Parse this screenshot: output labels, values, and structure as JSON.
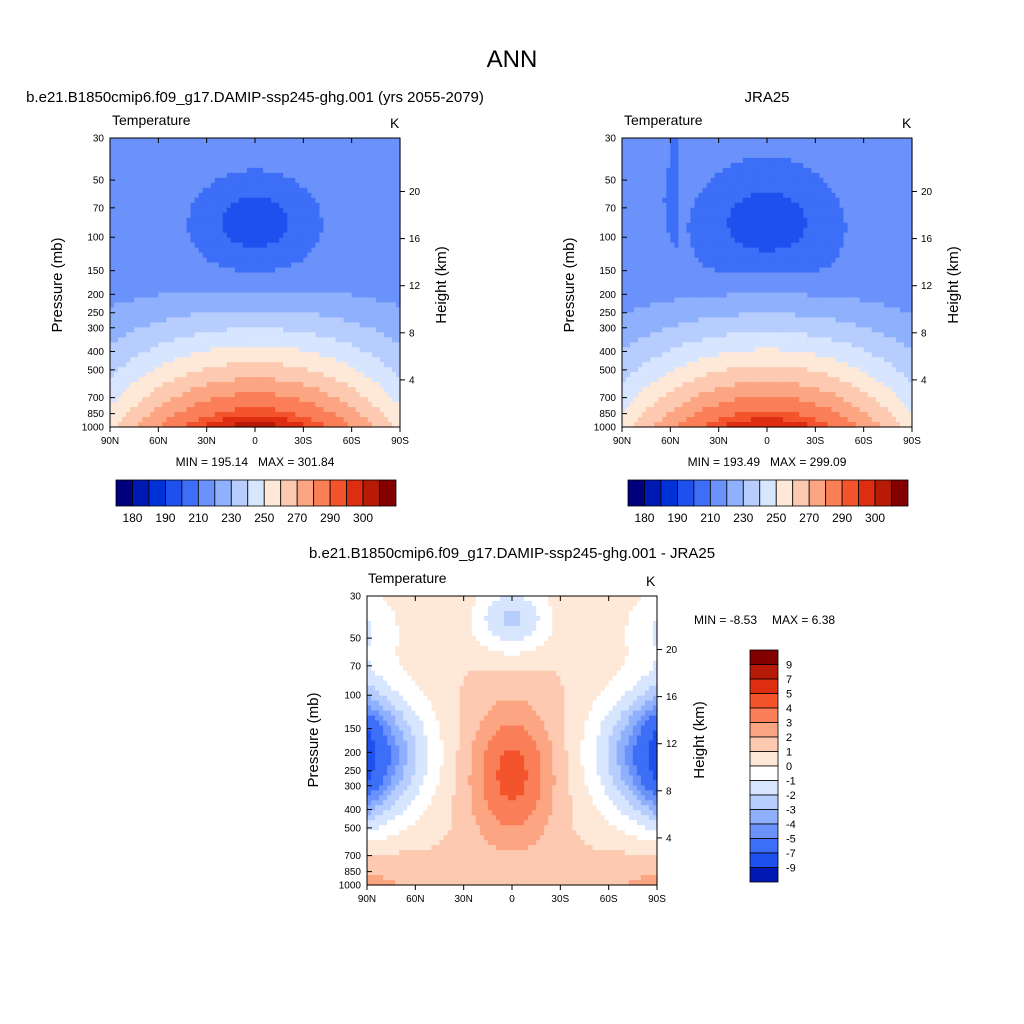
{
  "figure": {
    "title": "ANN"
  },
  "palette": {
    "levels_abs": [
      "180",
      "190",
      "210",
      "230",
      "250",
      "270",
      "290",
      "300"
    ],
    "colors_abs": [
      "#00007f",
      "#0019b2",
      "#0032d8",
      "#1e50ee",
      "#3c6ef7",
      "#6a92fa",
      "#8fb0fc",
      "#b6cdfd",
      "#d7e5fe",
      "#fee8d8",
      "#fdc9b0",
      "#fca582",
      "#fa7e58",
      "#f4542c",
      "#dd2e12",
      "#b71a07",
      "#820000"
    ],
    "levels_diff": [
      "9",
      "7",
      "5",
      "4",
      "3",
      "2",
      "1",
      "0",
      "-1",
      "-2",
      "-3",
      "-4",
      "-5",
      "-7",
      "-9"
    ],
    "colors_diff": [
      "#820000",
      "#b71a07",
      "#dd2e12",
      "#f4542c",
      "#fa7e58",
      "#fca582",
      "#fdc9b0",
      "#fee8d8",
      "#ffffff",
      "#d7e5fe",
      "#b6cdfd",
      "#8fb0fc",
      "#6a92fa",
      "#3c6ef7",
      "#1e50ee",
      "#0019b2"
    ]
  },
  "chart_data": [
    {
      "type": "heatmap",
      "title": "b.e21.B1850cmip6.f09_g17.DAMIP-ssp245-ghg.001 (yrs 2055-2079)",
      "variable": "Temperature",
      "units": "K",
      "xlabel": "",
      "ylabel": "Pressure (mb)",
      "y2label": "Height (km)",
      "xticks": [
        "90N",
        "60N",
        "30N",
        "0",
        "30S",
        "60S",
        "90S"
      ],
      "yticks": [
        "30",
        "50",
        "70",
        "100",
        "150",
        "200",
        "250",
        "300",
        "400",
        "500",
        "700",
        "850",
        "1000"
      ],
      "y2ticks": [
        "20",
        "16",
        "12",
        "8",
        "4"
      ],
      "ylim": [
        1000,
        30
      ],
      "y_scale": "log",
      "min_label": "MIN = 195.14",
      "max_label": "MAX = 301.84",
      "min": 195.14,
      "max": 301.84,
      "colorbar": "horizontal",
      "colorbar_labels": [
        "180",
        "190",
        "210",
        "230",
        "250",
        "270",
        "290",
        "300"
      ]
    },
    {
      "type": "heatmap",
      "title": "JRA25",
      "variable": "Temperature",
      "units": "K",
      "xlabel": "",
      "ylabel": "Pressure (mb)",
      "y2label": "Height (km)",
      "xticks": [
        "90N",
        "60N",
        "30N",
        "0",
        "30S",
        "60S",
        "90S"
      ],
      "yticks": [
        "30",
        "50",
        "70",
        "100",
        "150",
        "200",
        "250",
        "300",
        "400",
        "500",
        "700",
        "850",
        "1000"
      ],
      "y2ticks": [
        "20",
        "16",
        "12",
        "8",
        "4"
      ],
      "ylim": [
        1000,
        30
      ],
      "y_scale": "log",
      "min_label": "MIN = 193.49",
      "max_label": "MAX = 299.09",
      "min": 193.49,
      "max": 299.09,
      "colorbar": "horizontal",
      "colorbar_labels": [
        "180",
        "190",
        "210",
        "230",
        "250",
        "270",
        "290",
        "300"
      ]
    },
    {
      "type": "heatmap",
      "title": "b.e21.B1850cmip6.f09_g17.DAMIP-ssp245-ghg.001 - JRA25",
      "variable": "Temperature",
      "units": "K",
      "xlabel": "",
      "ylabel": "Pressure (mb)",
      "y2label": "Height (km)",
      "xticks": [
        "90N",
        "60N",
        "30N",
        "0",
        "30S",
        "60S",
        "90S"
      ],
      "yticks": [
        "30",
        "50",
        "70",
        "100",
        "150",
        "200",
        "250",
        "300",
        "400",
        "500",
        "700",
        "850",
        "1000"
      ],
      "y2ticks": [
        "20",
        "16",
        "12",
        "8",
        "4"
      ],
      "ylim": [
        1000,
        30
      ],
      "y_scale": "log",
      "min_label": "MIN =  -8.53",
      "max_label": "MAX =   6.38",
      "min": -8.53,
      "max": 6.38,
      "colorbar": "vertical",
      "colorbar_labels": [
        "9",
        "7",
        "5",
        "4",
        "3",
        "2",
        "1",
        "0",
        "-1",
        "-2",
        "-3",
        "-4",
        "-5",
        "-7",
        "-9"
      ]
    }
  ]
}
